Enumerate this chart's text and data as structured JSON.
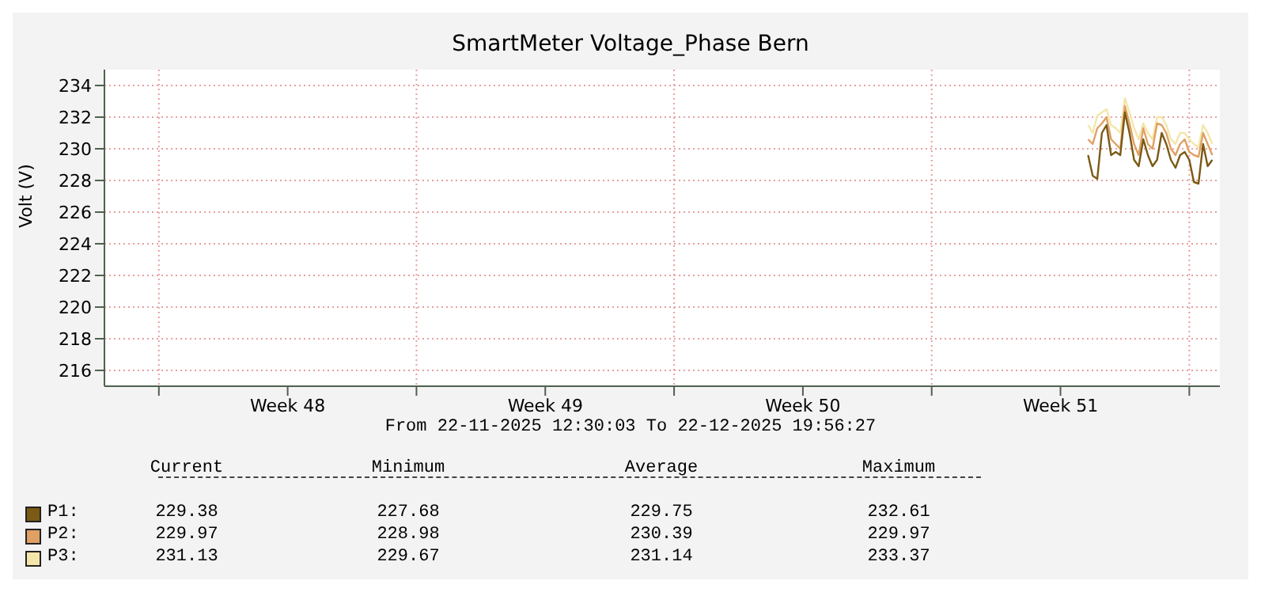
{
  "chart_data": {
    "type": "line",
    "title": "SmartMeter Voltage_Phase Bern",
    "ylabel": "Volt (V)",
    "x": [
      "2025-12-19T06:00",
      "2025-12-19T09:00",
      "2025-12-19T12:00",
      "2025-12-19T15:00",
      "2025-12-19T18:00",
      "2025-12-19T21:00",
      "2025-12-20T00:00",
      "2025-12-20T03:00",
      "2025-12-20T06:00",
      "2025-12-20T09:00",
      "2025-12-20T12:00",
      "2025-12-20T15:00",
      "2025-12-20T18:00",
      "2025-12-20T21:00",
      "2025-12-21T00:00",
      "2025-12-21T03:00",
      "2025-12-21T06:00",
      "2025-12-21T09:00",
      "2025-12-21T12:00",
      "2025-12-21T15:00",
      "2025-12-21T18:00",
      "2025-12-21T21:00",
      "2025-12-22T00:00",
      "2025-12-22T03:00",
      "2025-12-22T06:00",
      "2025-12-22T09:00",
      "2025-12-22T12:00",
      "2025-12-22T15:00"
    ],
    "series": [
      {
        "name": "P3:",
        "color": "#f3e6a8",
        "values": [
          231.5,
          231,
          232.1,
          232.3,
          232.5,
          231.5,
          231.3,
          231,
          233.2,
          232.3,
          231.3,
          230.6,
          231.6,
          231,
          230.6,
          232,
          232,
          231.5,
          230.6,
          230.3,
          231,
          231,
          230.6,
          230.3,
          230.1,
          231.5,
          231,
          230.3
        ]
      },
      {
        "name": "P2:",
        "color": "#e0a064",
        "values": [
          230.6,
          230.3,
          231.3,
          231.6,
          232,
          230.6,
          230.3,
          230,
          232.7,
          231.6,
          230.3,
          229.6,
          231.3,
          230.3,
          230,
          231.6,
          231.5,
          231,
          230,
          229.6,
          230.3,
          230.6,
          229.8,
          229.6,
          229.5,
          231,
          230.3,
          229.6
        ]
      },
      {
        "name": "P1:",
        "color": "#7a5a14",
        "values": [
          229.6,
          228.3,
          228.1,
          231,
          231.5,
          229.6,
          229.8,
          229.6,
          232.3,
          231,
          229.3,
          228.9,
          230.6,
          229.6,
          228.9,
          229.3,
          231,
          230.3,
          229.3,
          228.8,
          229.6,
          229.8,
          229.3,
          227.9,
          227.8,
          230.3,
          228.9,
          229.3
        ]
      }
    ],
    "xlim": [
      "2025-11-22T12:30",
      "2025-12-22T19:56"
    ],
    "xticks": [
      {
        "value": "2025-11-24T00:00",
        "label": null
      },
      {
        "value": "2025-11-27T12:00",
        "label": "Week 48"
      },
      {
        "value": "2025-12-01T00:00",
        "label": null
      },
      {
        "value": "2025-12-04T12:00",
        "label": "Week 49"
      },
      {
        "value": "2025-12-08T00:00",
        "label": null
      },
      {
        "value": "2025-12-11T12:00",
        "label": "Week 50"
      },
      {
        "value": "2025-12-15T00:00",
        "label": null
      },
      {
        "value": "2025-12-18T12:00",
        "label": "Week 51"
      },
      {
        "value": "2025-12-22T00:00",
        "label": null
      }
    ],
    "ylim": [
      215,
      235
    ],
    "yticks": [
      216,
      218,
      220,
      222,
      224,
      226,
      228,
      230,
      232,
      234
    ],
    "grid": true,
    "legend": "bottom",
    "marker": "none",
    "line_style": "solid",
    "annotations": [
      "From 22-11-2025 12:30:03 To 22-12-2025 19:56:27",
      "Current",
      "Minimum",
      "Average",
      "Maximum",
      "229.38",
      "227.68",
      "229.75",
      "232.61",
      "229.97",
      "228.98",
      "230.39",
      "229.97",
      "231.13",
      "229.67",
      "231.14",
      "233.37"
    ]
  }
}
